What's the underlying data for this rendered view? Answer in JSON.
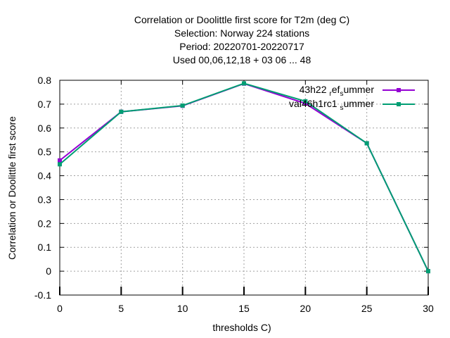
{
  "chart_data": {
    "type": "line",
    "title_lines": [
      "Correlation or Doolittle first score  for T2m (deg C)",
      "Selection: Norway    224 stations",
      "Period: 20220701-20220717",
      "Used  00,06,12,18  + 03 06 ... 48"
    ],
    "xlabel": "thresholds C)",
    "ylabel": "Correlation or Doolittle first score",
    "xlim": [
      0,
      30
    ],
    "ylim": [
      -0.1,
      0.8
    ],
    "x_ticks": [
      "0",
      "5",
      "10",
      "15",
      "20",
      "25",
      "30"
    ],
    "y_ticks": [
      "-0.1",
      "0",
      "0.1",
      "0.2",
      "0.3",
      "0.4",
      "0.5",
      "0.6",
      "0.7",
      "0.8"
    ],
    "grid": true,
    "legend_position": "top-right",
    "x": [
      0,
      5,
      10,
      15,
      20,
      25,
      30
    ],
    "series": [
      {
        "name_parts": [
          "43h22",
          "ref",
          "summer"
        ],
        "name_display": [
          "43h22 ",
          "r",
          "ef",
          "s",
          "ummer"
        ],
        "color": "#9400d3",
        "values": [
          0.464,
          0.668,
          0.693,
          0.786,
          0.703,
          0.536,
          0.0
        ]
      },
      {
        "name_parts": [
          "val46h1rc1",
          "summer"
        ],
        "name_display": [
          "val46h1rc1 ",
          "s",
          "ummer"
        ],
        "color": "#009e73",
        "values": [
          0.448,
          0.668,
          0.694,
          0.787,
          0.712,
          0.536,
          0.0
        ]
      }
    ]
  }
}
